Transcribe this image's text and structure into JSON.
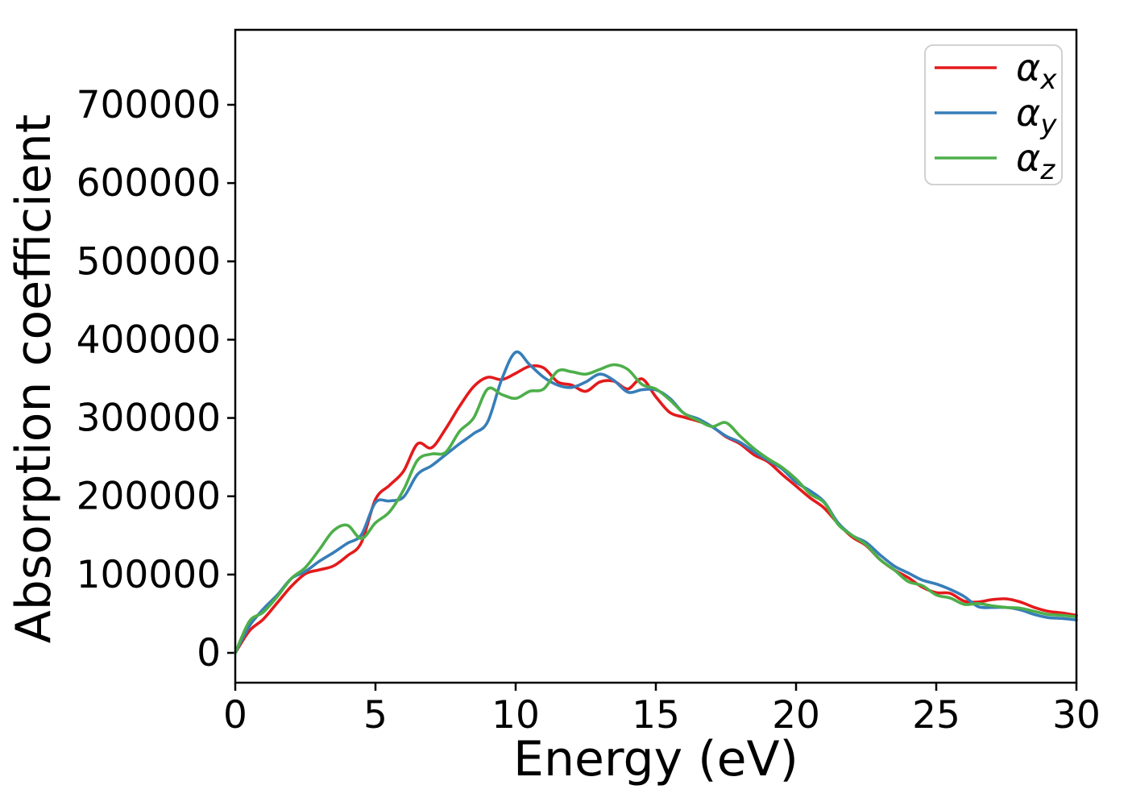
{
  "figure": {
    "background": "#ffffff",
    "xlabel": "Energy (eV)",
    "ylabel": "Absorption coefficient"
  },
  "legend": {
    "position": "upper right",
    "items": [
      {
        "symbol": "α",
        "subscript": "x",
        "color": "#e41a1c"
      },
      {
        "symbol": "α",
        "subscript": "y",
        "color": "#377eb8"
      },
      {
        "symbol": "α",
        "subscript": "z",
        "color": "#4daf4a"
      }
    ]
  },
  "chart_data": {
    "type": "line",
    "title": "",
    "xlabel": "Energy (eV)",
    "ylabel": "Absorption coefficient",
    "xlim": [
      0,
      30
    ],
    "ylim": [
      -38000,
      796000
    ],
    "x_ticks": [
      0,
      5,
      10,
      15,
      20,
      25,
      30
    ],
    "y_ticks": [
      0,
      100000,
      200000,
      300000,
      400000,
      500000,
      600000,
      700000
    ],
    "grid": false,
    "legend_position": "upper right",
    "x": [
      0,
      0.5,
      1,
      1.5,
      2,
      2.5,
      3,
      3.5,
      4,
      4.5,
      5,
      5.5,
      6,
      6.5,
      7,
      7.5,
      8,
      8.5,
      9,
      9.5,
      10,
      10.5,
      11,
      11.5,
      12,
      12.5,
      13,
      13.5,
      14,
      14.5,
      15,
      15.5,
      16,
      16.5,
      17,
      17.5,
      18,
      18.5,
      19,
      19.5,
      20,
      20.5,
      21,
      21.5,
      22,
      22.5,
      23,
      23.5,
      24,
      24.5,
      25,
      25.5,
      26,
      26.5,
      27,
      27.5,
      28,
      28.5,
      29,
      29.5,
      30
    ],
    "series": [
      {
        "name": "α_x",
        "color": "#e41a1c",
        "values": [
          0,
          28000,
          43000,
          64000,
          85000,
          101000,
          106000,
          111000,
          124000,
          141000,
          196000,
          214000,
          232000,
          267000,
          262000,
          286000,
          315000,
          340000,
          352000,
          349000,
          357000,
          366000,
          364000,
          346000,
          342000,
          334000,
          346000,
          347000,
          337000,
          350000,
          327000,
          307000,
          301000,
          296000,
          289000,
          276000,
          267000,
          253000,
          244000,
          228000,
          213000,
          198000,
          185000,
          165000,
          148000,
          137000,
          119000,
          106000,
          96000,
          84000,
          77000,
          76000,
          66000,
          65000,
          68000,
          69000,
          65000,
          58000,
          53000,
          51000,
          48000
        ]
      },
      {
        "name": "α_y",
        "color": "#377eb8",
        "values": [
          0,
          34000,
          56000,
          74000,
          95000,
          104000,
          117000,
          128000,
          140000,
          151000,
          192000,
          194000,
          199000,
          228000,
          239000,
          253000,
          267000,
          280000,
          295000,
          349000,
          384000,
          368000,
          352000,
          342000,
          339000,
          346000,
          356000,
          348000,
          333000,
          336000,
          336000,
          325000,
          306000,
          299000,
          289000,
          277000,
          269000,
          257000,
          246000,
          235000,
          218000,
          207000,
          193000,
          166000,
          150000,
          141000,
          125000,
          111000,
          102000,
          93000,
          88000,
          81000,
          72000,
          59000,
          58000,
          58000,
          55000,
          49000,
          45000,
          44000,
          42000
        ]
      },
      {
        "name": "α_z",
        "color": "#4daf4a",
        "values": [
          0,
          40000,
          52000,
          72000,
          95000,
          109000,
          132000,
          156000,
          163000,
          146000,
          166000,
          180000,
          208000,
          246000,
          254000,
          256000,
          283000,
          300000,
          337000,
          330000,
          325000,
          334000,
          337000,
          360000,
          359000,
          356000,
          362000,
          368000,
          362000,
          343000,
          337000,
          323000,
          306000,
          297000,
          289000,
          294000,
          277000,
          261000,
          248000,
          237000,
          222000,
          203000,
          192000,
          164000,
          150000,
          138000,
          119000,
          106000,
          91000,
          86000,
          74000,
          70000,
          62000,
          63000,
          60000,
          58000,
          57000,
          53000,
          49000,
          48000,
          46000
        ]
      }
    ]
  }
}
